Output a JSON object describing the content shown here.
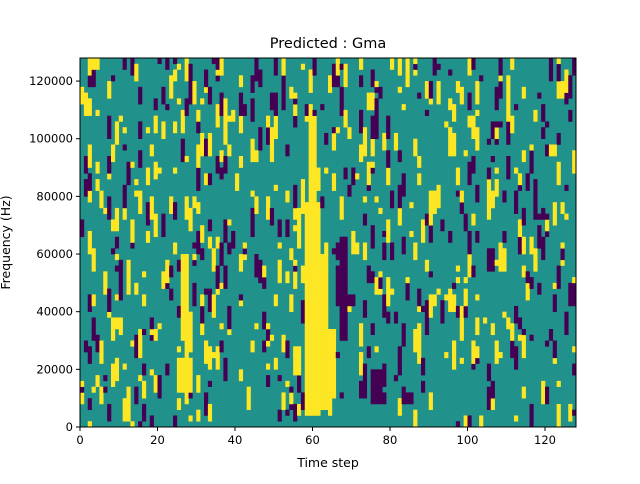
{
  "chart_data": {
    "type": "heatmap",
    "title": "Predicted : Gma",
    "xlabel": "Time step",
    "ylabel": "Frequency (Hz)",
    "xlim": [
      0,
      128
    ],
    "ylim": [
      0,
      128000
    ],
    "x_ticks": [
      0,
      20,
      40,
      60,
      80,
      100,
      120
    ],
    "x_tick_labels": [
      "0",
      "20",
      "40",
      "60",
      "80",
      "100",
      "120"
    ],
    "y_ticks": [
      0,
      20000,
      40000,
      60000,
      80000,
      100000,
      120000
    ],
    "y_tick_labels": [
      "0",
      "20000",
      "40000",
      "60000",
      "80000",
      "100000",
      "120000"
    ],
    "grid": false,
    "legend": "none",
    "colormap": "viridis",
    "colors": {
      "background": "#21918c",
      "high": "#fde725",
      "low": "#440154"
    },
    "bins": {
      "time_steps": 128,
      "frequency_bins": 128,
      "bin_hz": 1000
    },
    "dense_regions": [
      {
        "value": "high",
        "t": [
          58,
          62
        ],
        "f": [
          4000,
          78000
        ]
      },
      {
        "value": "high",
        "t": [
          59,
          61
        ],
        "f": [
          78000,
          108000
        ]
      },
      {
        "value": "high",
        "t": [
          62,
          64
        ],
        "f": [
          6000,
          60000
        ]
      },
      {
        "value": "high",
        "t": [
          64,
          66
        ],
        "f": [
          10000,
          34000
        ]
      },
      {
        "value": "high",
        "t": [
          26,
          28
        ],
        "f": [
          30000,
          60000
        ]
      },
      {
        "value": "high",
        "t": [
          25,
          29
        ],
        "f": [
          12000,
          24000
        ]
      },
      {
        "value": "high",
        "t": [
          55,
          57
        ],
        "f": [
          18000,
          28000
        ]
      },
      {
        "value": "low",
        "t": [
          67,
          69
        ],
        "f": [
          30000,
          66000
        ]
      },
      {
        "value": "low",
        "t": [
          75,
          78
        ],
        "f": [
          8000,
          20000
        ]
      },
      {
        "value": "low",
        "t": [
          83,
          86
        ],
        "f": [
          8000,
          12000
        ]
      },
      {
        "value": "low",
        "t": [
          69,
          71
        ],
        "f": [
          42000,
          46000
        ]
      },
      {
        "value": "low",
        "t": [
          126,
          128
        ],
        "f": [
          42000,
          50000
        ]
      },
      {
        "value": "low",
        "t": [
          41,
          43
        ],
        "f": [
          108000,
          112000
        ]
      }
    ],
    "scattered": {
      "high_density": 0.05,
      "low_density": 0.04,
      "seed": 7
    }
  }
}
